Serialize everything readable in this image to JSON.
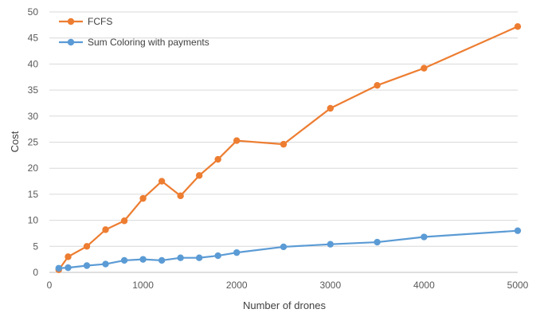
{
  "chart_data": {
    "type": "line",
    "title": "",
    "xlabel": "Number  of drones",
    "ylabel": "Cost",
    "xlim": [
      0,
      5000
    ],
    "ylim": [
      0,
      50
    ],
    "xticks": [
      0,
      1000,
      2000,
      3000,
      4000,
      5000
    ],
    "yticks": [
      0,
      5,
      10,
      15,
      20,
      25,
      30,
      35,
      40,
      45,
      50
    ],
    "grid": "horizontal",
    "legend_position": "top-left",
    "series": [
      {
        "name": "FCFS",
        "color": "#ED7D31",
        "x": [
          100,
          200,
          400,
          600,
          800,
          1000,
          1200,
          1400,
          1600,
          1800,
          2000,
          2500,
          3000,
          3500,
          4000,
          5000
        ],
        "y": [
          0.5,
          3.0,
          5.0,
          8.2,
          9.9,
          14.2,
          17.5,
          14.7,
          18.6,
          21.7,
          25.3,
          24.6,
          31.5,
          35.9,
          39.2,
          47.2
        ]
      },
      {
        "name": "Sum Coloring with payments",
        "color": "#5B9BD5",
        "x": [
          100,
          200,
          400,
          600,
          800,
          1000,
          1200,
          1400,
          1600,
          1800,
          2000,
          2500,
          3000,
          3500,
          4000,
          5000
        ],
        "y": [
          0.8,
          0.9,
          1.3,
          1.6,
          2.3,
          2.5,
          2.3,
          2.8,
          2.8,
          3.2,
          3.8,
          4.9,
          5.4,
          5.8,
          6.8,
          8.0
        ]
      }
    ]
  }
}
